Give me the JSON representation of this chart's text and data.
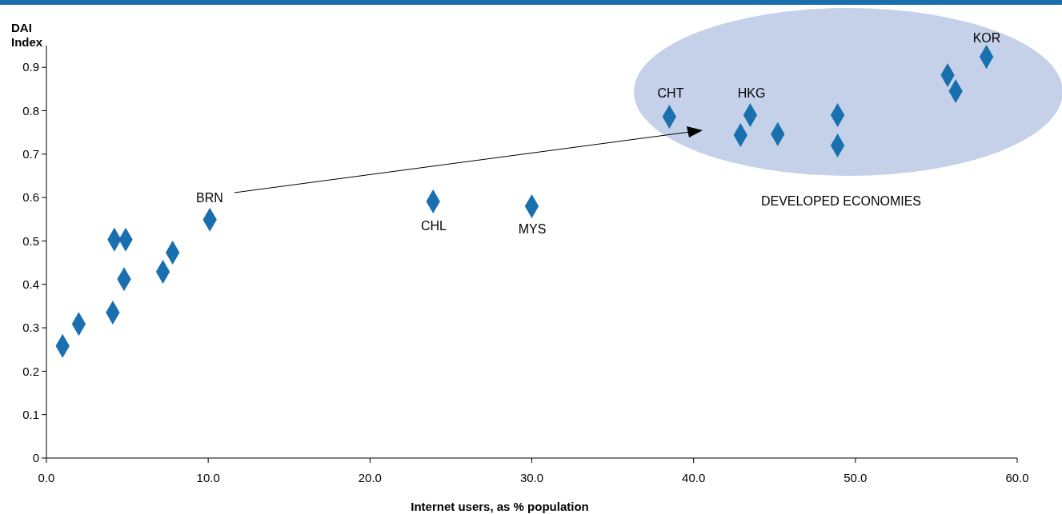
{
  "chart_data": {
    "type": "scatter",
    "ylabel": "DAI Index",
    "xlabel": "Internet users, as % population",
    "x": [
      1.0,
      2.0,
      4.1,
      4.2,
      4.9,
      4.8,
      7.2,
      7.8,
      10.1,
      23.9,
      30.0,
      38.5,
      42.9,
      43.5,
      45.2,
      48.9,
      48.9,
      55.7,
      56.2,
      58.1
    ],
    "series": [
      {
        "color": "#1a6faf",
        "values": [
          0.258,
          0.309,
          0.335,
          0.503,
          0.503,
          0.412,
          0.429,
          0.473,
          0.549,
          0.591,
          0.58,
          0.786,
          0.744,
          0.79,
          0.746,
          0.79,
          0.72,
          0.882,
          0.845,
          0.924
        ]
      }
    ],
    "marker": "diamond",
    "grid": false,
    "xlim": [
      0,
      60
    ],
    "xticks": [
      {
        "value": 0,
        "label": "0.0"
      },
      {
        "value": 10,
        "label": "10.0"
      },
      {
        "value": 20,
        "label": "20.0"
      },
      {
        "value": 30,
        "label": "30.0"
      },
      {
        "value": 40,
        "label": "40.0"
      },
      {
        "value": 50,
        "label": "50.0"
      },
      {
        "value": 60,
        "label": "60.0"
      }
    ],
    "ylim": [
      0,
      0.95
    ],
    "yticks": [
      0,
      0.1,
      0.2,
      0.3,
      0.4,
      0.5,
      0.6,
      0.7,
      0.8,
      0.9
    ],
    "annotations": [
      "BRN",
      "CHL",
      "MYS",
      "CHT",
      "HKG",
      "KOR",
      "DEVELOPED ECONOMIES"
    ]
  }
}
